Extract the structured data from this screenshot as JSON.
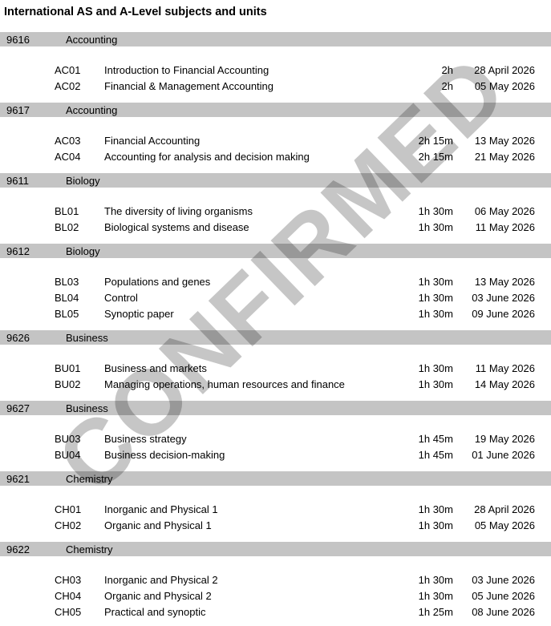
{
  "title": "International AS and A-Level subjects and units",
  "watermark": "CONFIRMED",
  "colors": {
    "section_bar": "#c4c4c4",
    "watermark": "#c6c6c6",
    "text": "#000000",
    "page_background": "#ffffff"
  },
  "sections": [
    {
      "code": "9616",
      "subject": "Accounting",
      "units": [
        {
          "code": "AC01",
          "title": "Introduction to Financial Accounting",
          "duration": "2h",
          "date": "28 April 2026"
        },
        {
          "code": "AC02",
          "title": "Financial & Management Accounting",
          "duration": "2h",
          "date": "05 May 2026"
        }
      ]
    },
    {
      "code": "9617",
      "subject": "Accounting",
      "units": [
        {
          "code": "AC03",
          "title": "Financial Accounting",
          "duration": "2h 15m",
          "date": "13 May 2026"
        },
        {
          "code": "AC04",
          "title": "Accounting for analysis and decision making",
          "duration": "2h 15m",
          "date": "21 May 2026"
        }
      ]
    },
    {
      "code": "9611",
      "subject": "Biology",
      "units": [
        {
          "code": "BL01",
          "title": "The diversity of living organisms",
          "duration": "1h 30m",
          "date": "06 May 2026"
        },
        {
          "code": "BL02",
          "title": "Biological systems and disease",
          "duration": "1h 30m",
          "date": "11 May 2026"
        }
      ]
    },
    {
      "code": "9612",
      "subject": "Biology",
      "units": [
        {
          "code": "BL03",
          "title": "Populations and genes",
          "duration": "1h 30m",
          "date": "13 May 2026"
        },
        {
          "code": "BL04",
          "title": "Control",
          "duration": "1h 30m",
          "date": "03 June 2026"
        },
        {
          "code": "BL05",
          "title": "Synoptic paper",
          "duration": "1h 30m",
          "date": "09 June 2026"
        }
      ]
    },
    {
      "code": "9626",
      "subject": "Business",
      "units": [
        {
          "code": "BU01",
          "title": "Business and markets",
          "duration": "1h 30m",
          "date": "11 May 2026"
        },
        {
          "code": "BU02",
          "title": "Managing operations, human resources and finance",
          "duration": "1h 30m",
          "date": "14 May 2026"
        }
      ]
    },
    {
      "code": "9627",
      "subject": "Business",
      "units": [
        {
          "code": "BU03",
          "title": "Business strategy",
          "duration": "1h 45m",
          "date": "19 May 2026"
        },
        {
          "code": "BU04",
          "title": "Business decision-making",
          "duration": "1h 45m",
          "date": "01 June 2026"
        }
      ]
    },
    {
      "code": "9621",
      "subject": "Chemistry",
      "units": [
        {
          "code": "CH01",
          "title": "Inorganic and Physical 1",
          "duration": "1h 30m",
          "date": "28 April 2026"
        },
        {
          "code": "CH02",
          "title": "Organic and Physical 1",
          "duration": "1h 30m",
          "date": "05 May 2026"
        }
      ]
    },
    {
      "code": "9622",
      "subject": "Chemistry",
      "units": [
        {
          "code": "CH03",
          "title": "Inorganic and Physical 2",
          "duration": "1h 30m",
          "date": "03 June 2026"
        },
        {
          "code": "CH04",
          "title": "Organic and Physical 2",
          "duration": "1h 30m",
          "date": "05 June 2026"
        },
        {
          "code": "CH05",
          "title": "Practical and synoptic",
          "duration": "1h 25m",
          "date": "08 June 2026"
        }
      ]
    }
  ]
}
